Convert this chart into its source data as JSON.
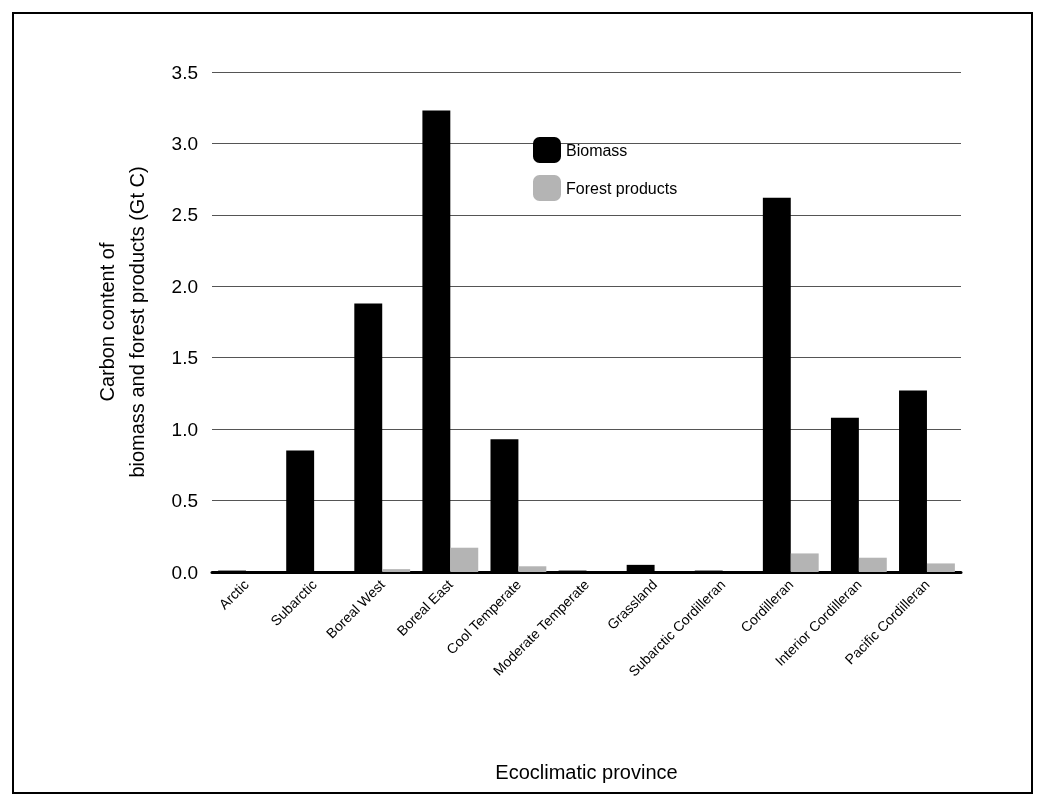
{
  "chart_data": {
    "type": "bar",
    "xlabel": "Ecoclimatic province",
    "ylabel": "Carbon content of\nbiomass and forest products (Gt C)",
    "categories": [
      "Arctic",
      "Subarctic",
      "Boreal West",
      "Boreal East",
      "Cool Temperate",
      "Moderate Temperate",
      "Grassland",
      "Subarctic Cordilleran",
      "Cordilleran",
      "Interior Cordilleran",
      "Pacific Cordilleran"
    ],
    "series": [
      {
        "name": "Biomass",
        "color": "#000000",
        "values": [
          0.01,
          0.85,
          1.88,
          3.23,
          0.93,
          0.01,
          0.05,
          0.01,
          2.62,
          1.08,
          1.27
        ]
      },
      {
        "name": "Forest products",
        "color": "#b4b4b4",
        "values": [
          0,
          0,
          0.02,
          0.17,
          0.04,
          0,
          0,
          0,
          0.13,
          0.1,
          0.06
        ]
      }
    ],
    "ylim": [
      0,
      3.5
    ],
    "yticks": [
      {
        "value": 0,
        "label": "0.0"
      },
      0.5,
      {
        "value": 1,
        "label": "1.0"
      },
      1.5,
      {
        "value": 2,
        "label": "2.0"
      },
      2.5,
      {
        "value": 3,
        "label": "3.0"
      },
      3.5
    ],
    "grid": "y",
    "legend": "top"
  }
}
